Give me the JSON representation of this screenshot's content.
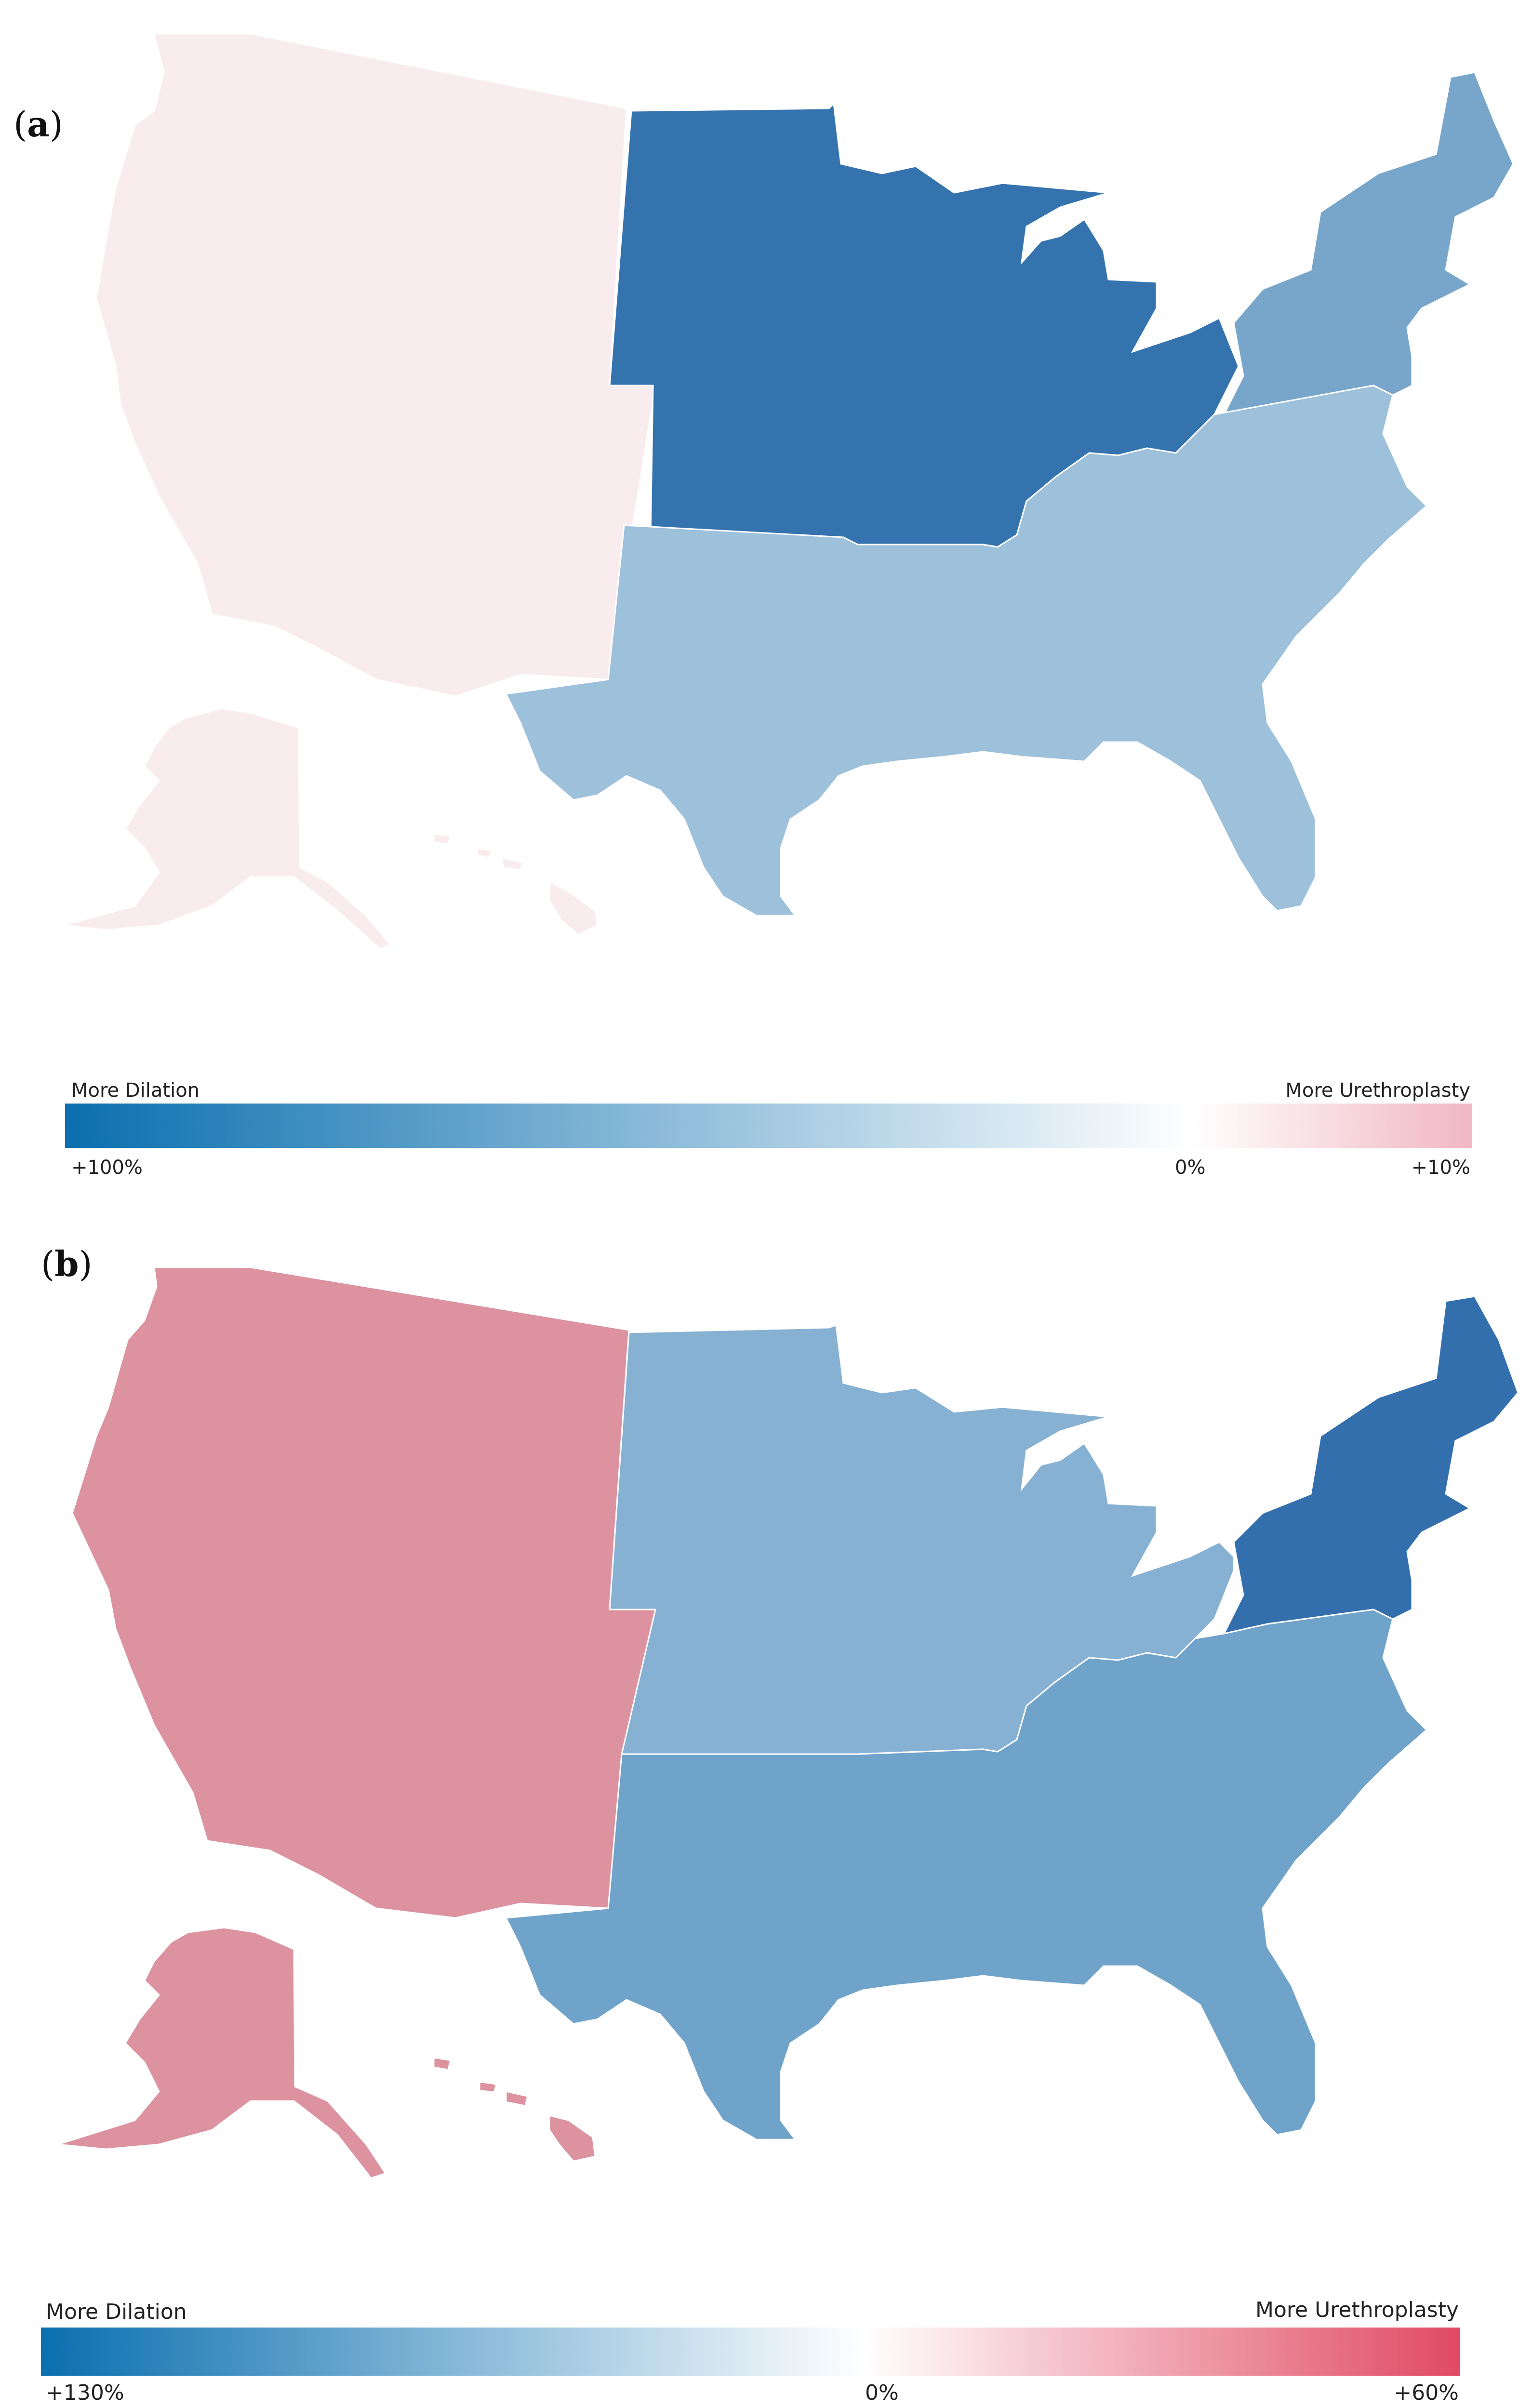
{
  "panels": [
    {
      "label": "a",
      "legend": {
        "left_title": "More Dilation",
        "right_title": "More Urethroplasty",
        "ticks": [
          "+100%",
          "0%",
          "+10%"
        ],
        "gradient_colors": [
          "#0a6faf",
          "#ffffff",
          "#f1b7c2"
        ]
      },
      "regions": [
        {
          "name": "West",
          "color": "#f8ecee"
        },
        {
          "name": "Midwest",
          "color": "#3573ae"
        },
        {
          "name": "Northeast",
          "color": "#78a6cb"
        },
        {
          "name": "South",
          "color": "#9dc0db"
        }
      ]
    },
    {
      "label": "b",
      "legend": {
        "left_title": "More Dilation",
        "right_title": "More Urethroplasty",
        "ticks": [
          "+130%",
          "0%",
          "+60%"
        ],
        "gradient_colors": [
          "#0a6faf",
          "#ffffff",
          "#e14a63"
        ]
      },
      "regions": [
        {
          "name": "West",
          "color": "#dc929f"
        },
        {
          "name": "Midwest",
          "color": "#86b1d3"
        },
        {
          "name": "Northeast",
          "color": "#336fac"
        },
        {
          "name": "South",
          "color": "#70a3ca"
        }
      ]
    }
  ]
}
